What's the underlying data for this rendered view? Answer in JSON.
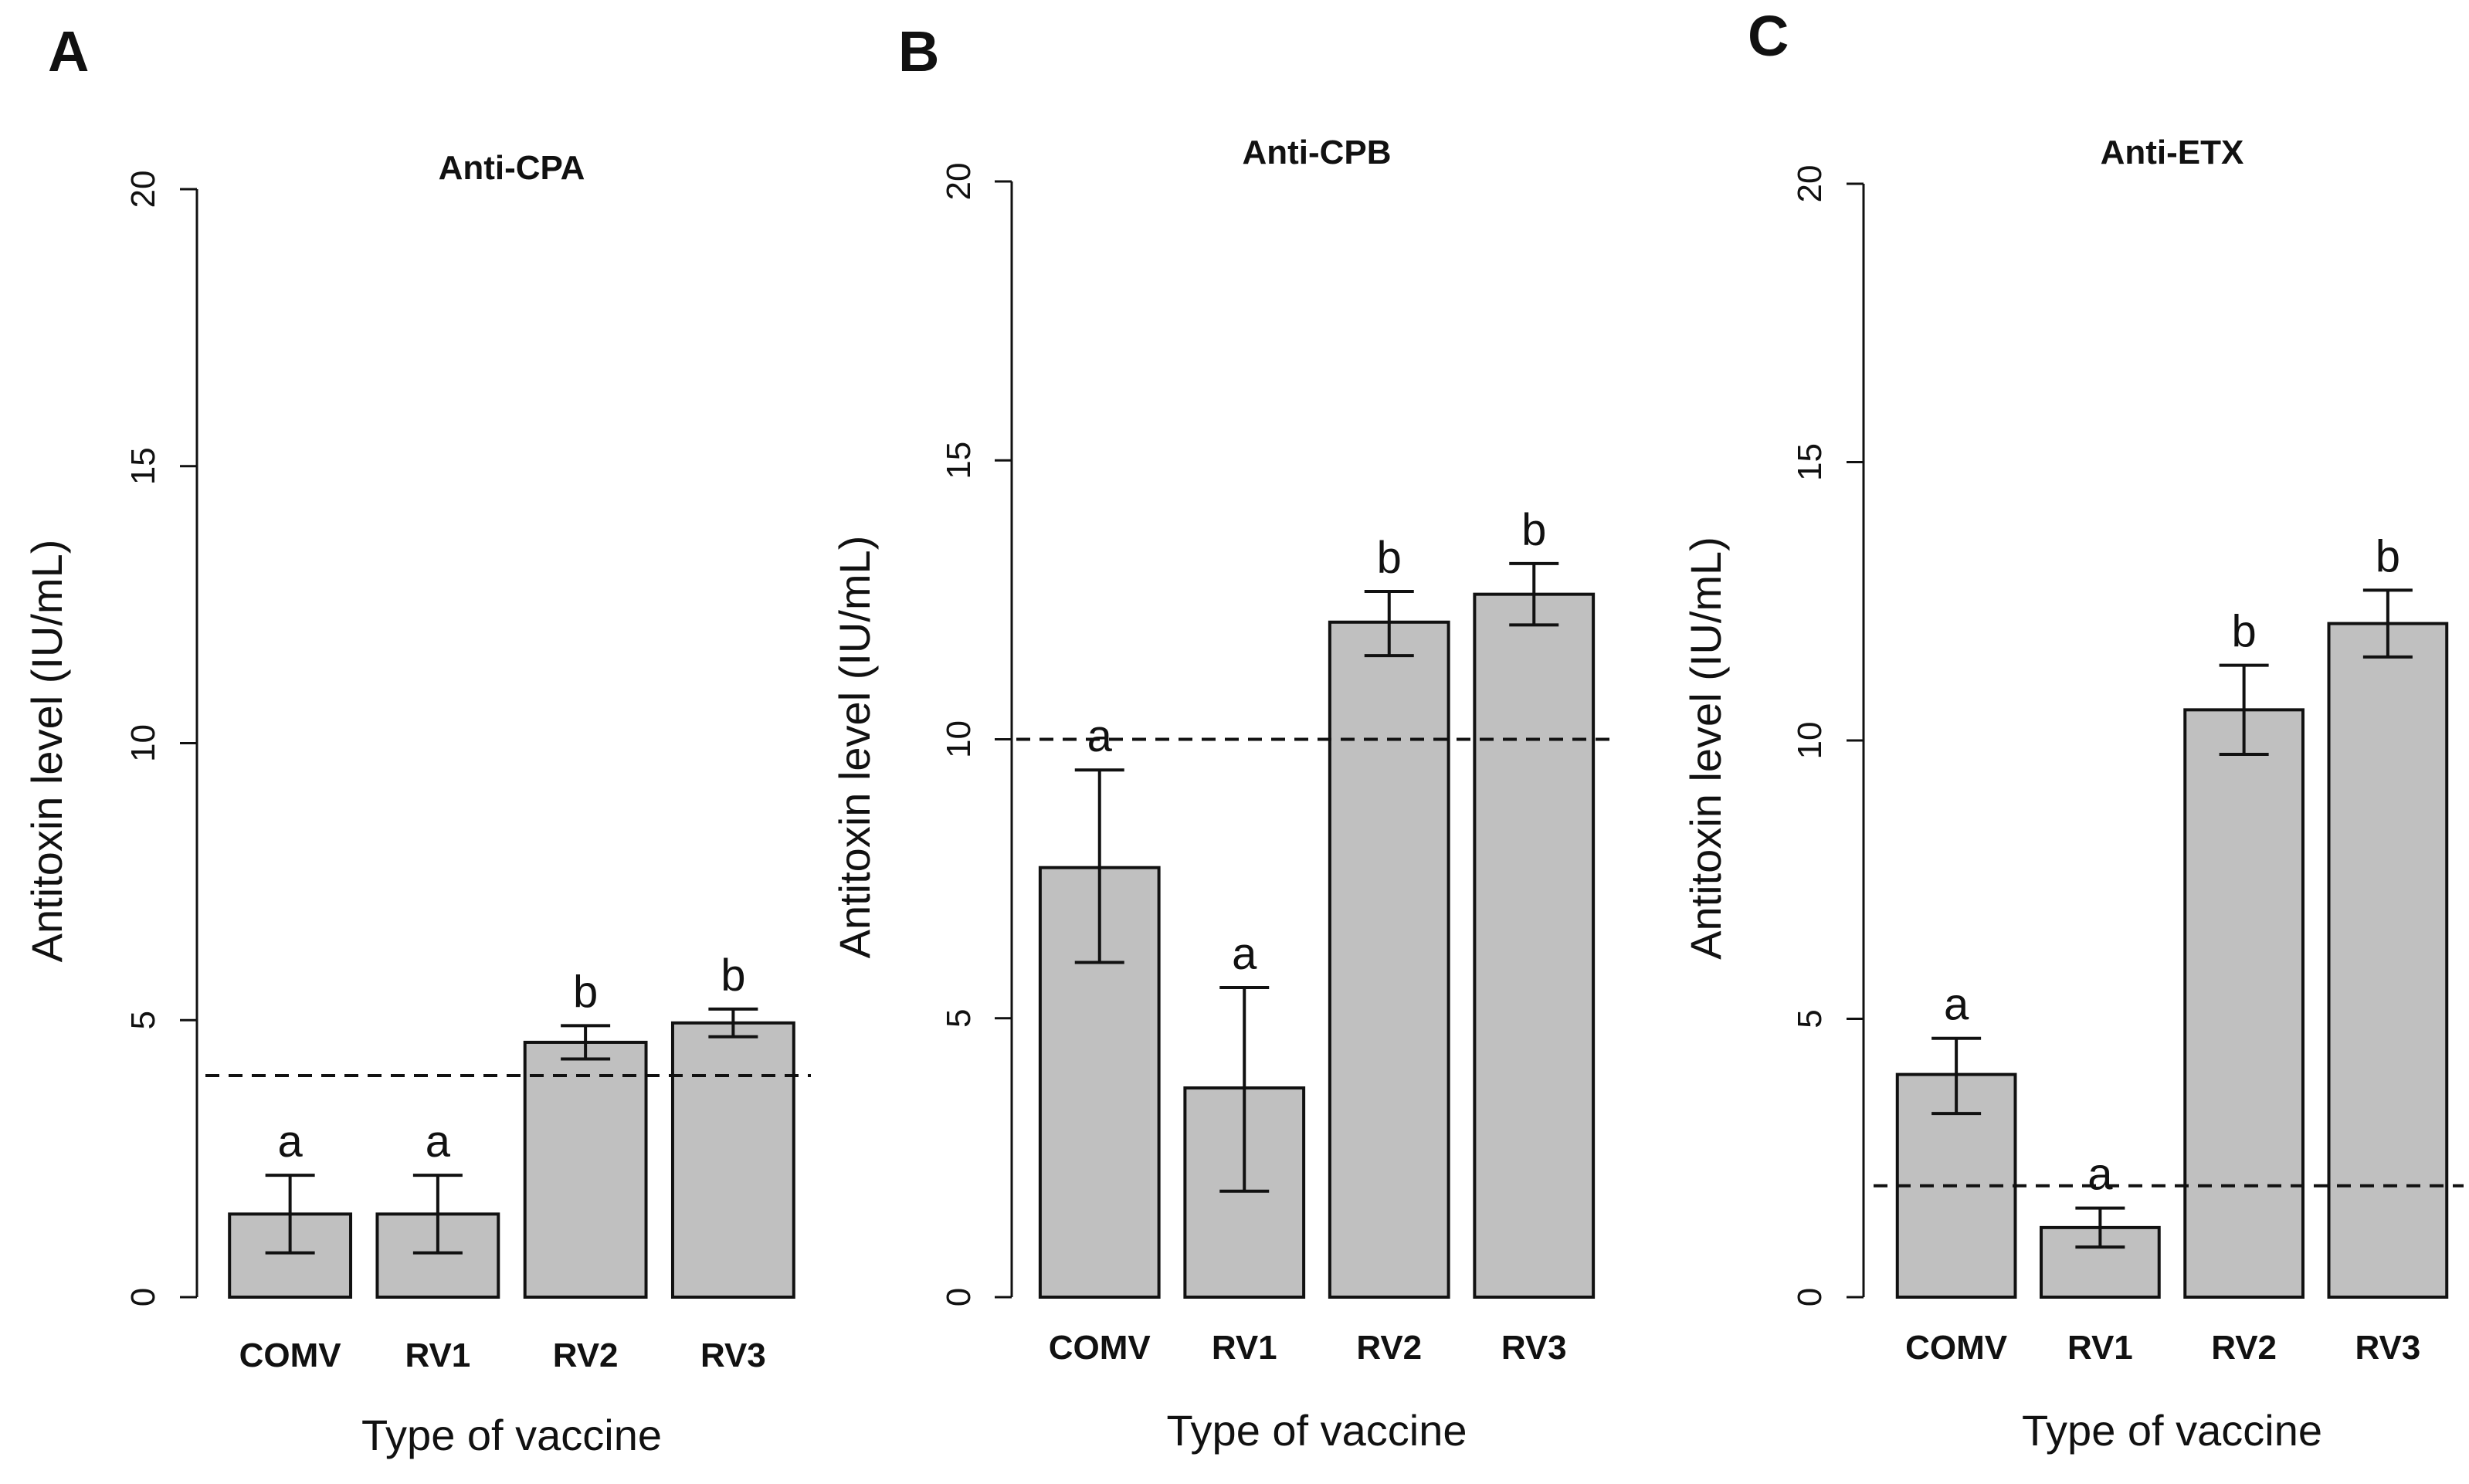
{
  "chart_data": [
    {
      "panel": "A",
      "type": "bar",
      "title": "Anti-CPA",
      "xlabel": "Type of vaccine",
      "ylabel": "Antitoxin level (IU/mL)",
      "ylim": [
        0,
        20
      ],
      "yticks": [
        "0",
        "5",
        "10",
        "15",
        "20"
      ],
      "categories": [
        "COMV",
        "RV1",
        "RV2",
        "RV3"
      ],
      "values": [
        1.5,
        1.5,
        4.6,
        4.95
      ],
      "error_low": [
        0.8,
        0.8,
        4.3,
        4.7
      ],
      "error_high": [
        2.2,
        2.2,
        4.9,
        5.2
      ],
      "labels": [
        "a",
        "a",
        "b",
        "b"
      ],
      "reference_line": 4
    },
    {
      "panel": "B",
      "type": "bar",
      "title": "Anti-CPB",
      "xlabel": "Type of vaccine",
      "ylabel": "Antitoxin level (IU/mL)",
      "ylim": [
        0,
        20
      ],
      "yticks": [
        "0",
        "5",
        "10",
        "15",
        "20"
      ],
      "categories": [
        "COMV",
        "RV1",
        "RV2",
        "RV3"
      ],
      "values": [
        7.7,
        3.75,
        12.1,
        12.6
      ],
      "error_low": [
        6.0,
        1.9,
        11.5,
        12.05
      ],
      "error_high": [
        9.45,
        5.55,
        12.65,
        13.15
      ],
      "labels": [
        "a",
        "a",
        "b",
        "b"
      ],
      "reference_line": 10
    },
    {
      "panel": "C",
      "type": "bar",
      "title": "Anti-ETX",
      "xlabel": "Type of vaccine",
      "ylabel": "Antitoxin level (IU/mL)",
      "ylim": [
        0,
        20
      ],
      "yticks": [
        "0",
        "5",
        "10",
        "15",
        "20"
      ],
      "categories": [
        "COMV",
        "RV1",
        "RV2",
        "RV3"
      ],
      "values": [
        4.0,
        1.25,
        10.55,
        12.1
      ],
      "error_low": [
        3.3,
        0.9,
        9.75,
        11.5
      ],
      "error_high": [
        4.65,
        1.6,
        11.35,
        12.7
      ],
      "labels": [
        "a",
        "a",
        "b",
        "b"
      ],
      "reference_line": 2
    }
  ]
}
